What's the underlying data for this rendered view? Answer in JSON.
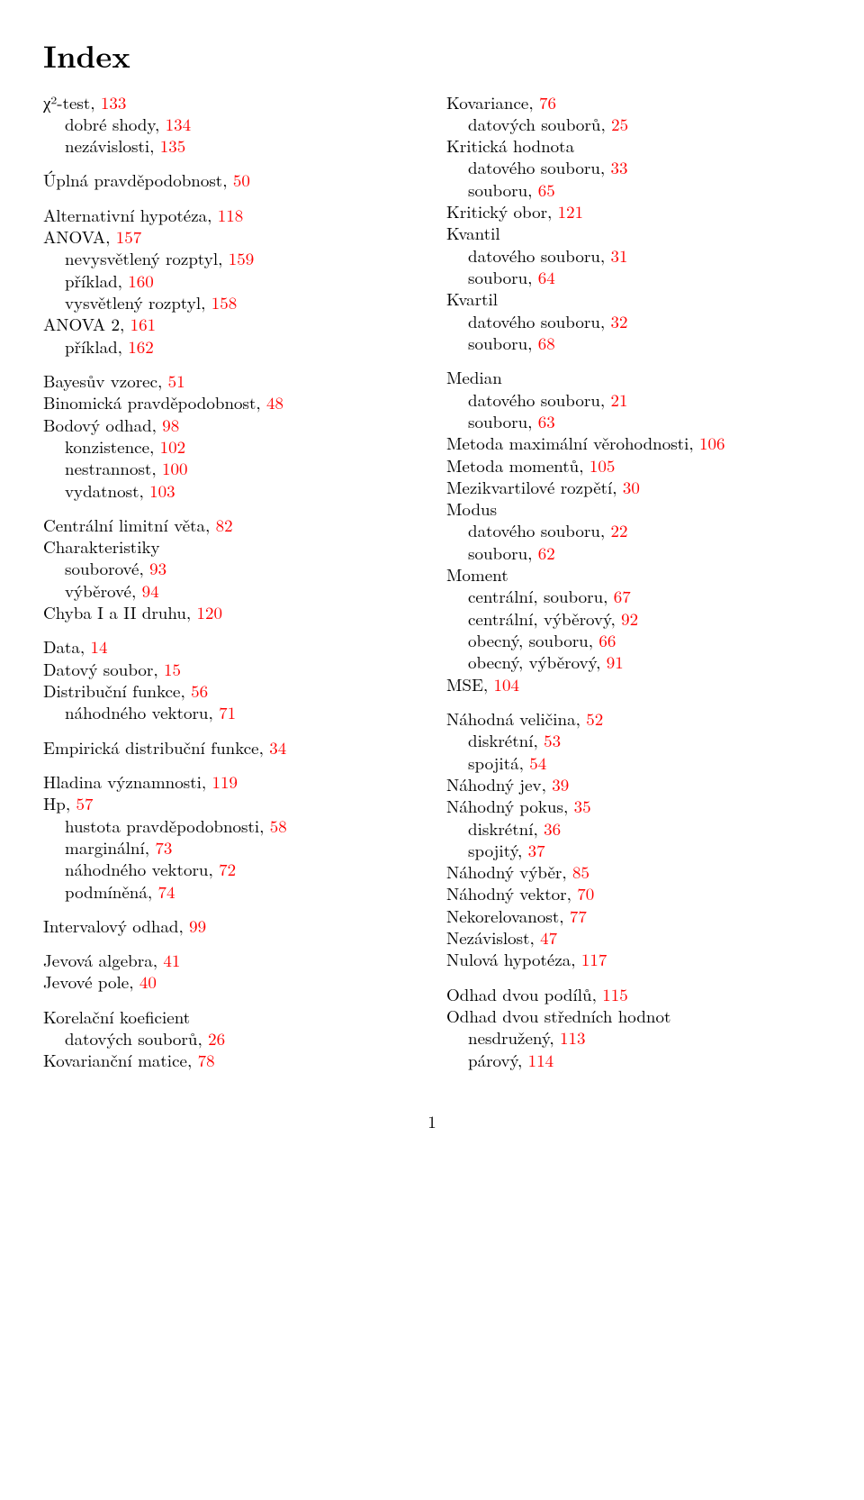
{
  "title": "Index",
  "page_number": "1",
  "colors": {
    "page_ref": "#ff0000",
    "text": "#000000",
    "bg": "#ffffff"
  },
  "left": [
    {
      "type": "group",
      "items": [
        {
          "t": "χ²-test, ",
          "p": "133"
        },
        {
          "t": "dobré shody, ",
          "p": "134",
          "sub": true
        },
        {
          "t": "nezávislosti, ",
          "p": "135",
          "sub": true
        }
      ]
    },
    {
      "type": "group",
      "items": [
        {
          "t": "Úplná pravděpodobnost, ",
          "p": "50"
        }
      ]
    },
    {
      "type": "group",
      "items": [
        {
          "t": "Alternativní hypotéza, ",
          "p": "118"
        },
        {
          "t": "ANOVA, ",
          "p": "157"
        },
        {
          "t": "nevysvětlený rozptyl, ",
          "p": "159",
          "sub": true
        },
        {
          "t": "příklad, ",
          "p": "160",
          "sub": true
        },
        {
          "t": "vysvětlený rozptyl, ",
          "p": "158",
          "sub": true
        },
        {
          "t": "ANOVA 2, ",
          "p": "161"
        },
        {
          "t": "příklad, ",
          "p": "162",
          "sub": true
        }
      ]
    },
    {
      "type": "group",
      "items": [
        {
          "t": "Bayesův vzorec, ",
          "p": "51"
        },
        {
          "t": "Binomická pravděpodobnost, ",
          "p": "48"
        },
        {
          "t": "Bodový odhad, ",
          "p": "98"
        },
        {
          "t": "konzistence, ",
          "p": "102",
          "sub": true
        },
        {
          "t": "nestrannost, ",
          "p": "100",
          "sub": true
        },
        {
          "t": "vydatnost, ",
          "p": "103",
          "sub": true
        }
      ]
    },
    {
      "type": "group",
      "items": [
        {
          "t": "Centrální limitní věta, ",
          "p": "82"
        },
        {
          "t": "Charakteristiky"
        },
        {
          "t": "souborové, ",
          "p": "93",
          "sub": true
        },
        {
          "t": "výběrové, ",
          "p": "94",
          "sub": true
        },
        {
          "t": "Chyba I a II druhu, ",
          "p": "120"
        }
      ]
    },
    {
      "type": "group",
      "items": [
        {
          "t": "Data, ",
          "p": "14"
        },
        {
          "t": "Datový soubor, ",
          "p": "15"
        },
        {
          "t": "Distribuční funkce, ",
          "p": "56"
        },
        {
          "t": "náhodného vektoru, ",
          "p": "71",
          "sub": true
        }
      ]
    },
    {
      "type": "group",
      "items": [
        {
          "t": "Empirická distribuční funkce, ",
          "p": "34"
        }
      ]
    },
    {
      "type": "group",
      "items": [
        {
          "t": "Hladina významnosti, ",
          "p": "119"
        },
        {
          "t": "Hp, ",
          "p": "57"
        },
        {
          "t": "hustota pravděpodobnosti, ",
          "p": "58",
          "sub": true
        },
        {
          "t": "marginální, ",
          "p": "73",
          "sub": true
        },
        {
          "t": "náhodného vektoru, ",
          "p": "72",
          "sub": true
        },
        {
          "t": "podmíněná, ",
          "p": "74",
          "sub": true
        }
      ]
    },
    {
      "type": "group",
      "items": [
        {
          "t": "Intervalový odhad, ",
          "p": "99"
        }
      ]
    },
    {
      "type": "group",
      "items": [
        {
          "t": "Jevová algebra, ",
          "p": "41"
        },
        {
          "t": "Jevové pole, ",
          "p": "40"
        }
      ]
    },
    {
      "type": "group",
      "items": [
        {
          "t": "Korelační koeficient"
        },
        {
          "t": "datových souborů, ",
          "p": "26",
          "sub": true
        },
        {
          "t": "Kovarianční matice, ",
          "p": "78"
        }
      ]
    }
  ],
  "right": [
    {
      "type": "group",
      "flow": true,
      "items": [
        {
          "t": "Kovariance, ",
          "p": "76"
        },
        {
          "t": "datových souborů, ",
          "p": "25",
          "sub": true
        },
        {
          "t": "Kritická hodnota"
        },
        {
          "t": "datového souboru, ",
          "p": "33",
          "sub": true
        },
        {
          "t": "souboru, ",
          "p": "65",
          "sub": true
        },
        {
          "t": "Kritický obor, ",
          "p": "121"
        },
        {
          "t": "Kvantil"
        },
        {
          "t": "datového souboru, ",
          "p": "31",
          "sub": true
        },
        {
          "t": "souboru, ",
          "p": "64",
          "sub": true
        },
        {
          "t": "Kvartil"
        },
        {
          "t": "datového souboru, ",
          "p": "32",
          "sub": true
        },
        {
          "t": "souboru, ",
          "p": "68",
          "sub": true
        }
      ]
    },
    {
      "type": "group",
      "flow": true,
      "items": [
        {
          "t": "Median"
        },
        {
          "t": "datového souboru, ",
          "p": "21",
          "sub": true
        },
        {
          "t": "souboru, ",
          "p": "63",
          "sub": true
        },
        {
          "t": "Metoda maximální věrohodnosti, ",
          "p": "106"
        },
        {
          "t": "Metoda momentů, ",
          "p": "105"
        },
        {
          "t": "Mezikvartilové rozpětí, ",
          "p": "30"
        },
        {
          "t": "Modus"
        },
        {
          "t": "datového souboru, ",
          "p": "22",
          "sub": true
        },
        {
          "t": "souboru, ",
          "p": "62",
          "sub": true
        },
        {
          "t": "Moment"
        },
        {
          "t": "centrální, souboru, ",
          "p": "67",
          "sub": true
        },
        {
          "t": "centrální, výběrový, ",
          "p": "92",
          "sub": true
        },
        {
          "t": "obecný, souboru, ",
          "p": "66",
          "sub": true
        },
        {
          "t": "obecný, výběrový, ",
          "p": "91",
          "sub": true
        },
        {
          "t": "MSE, ",
          "p": "104"
        }
      ]
    },
    {
      "type": "group",
      "flow": true,
      "items": [
        {
          "t": "Náhodná veličina, ",
          "p": "52"
        },
        {
          "t": "diskrétní, ",
          "p": "53",
          "sub": true
        },
        {
          "t": "spojitá, ",
          "p": "54",
          "sub": true
        },
        {
          "t": "Náhodný jev, ",
          "p": "39"
        },
        {
          "t": "Náhodný pokus, ",
          "p": "35"
        },
        {
          "t": "diskrétní, ",
          "p": "36",
          "sub": true
        },
        {
          "t": "spojitý, ",
          "p": "37",
          "sub": true
        },
        {
          "t": "Náhodný výběr, ",
          "p": "85"
        },
        {
          "t": "Náhodný vektor, ",
          "p": "70"
        },
        {
          "t": "Nekorelovanost, ",
          "p": "77"
        },
        {
          "t": "Nezávislost, ",
          "p": "47"
        },
        {
          "t": "Nulová hypotéza, ",
          "p": "117"
        }
      ]
    },
    {
      "type": "group",
      "flow": true,
      "items": [
        {
          "t": "Odhad dvou podílů, ",
          "p": "115"
        },
        {
          "t": "Odhad dvou středních hodnot"
        },
        {
          "t": "nesdružený, ",
          "p": "113",
          "sub": true
        },
        {
          "t": "párový, ",
          "p": "114",
          "sub": true
        }
      ]
    }
  ]
}
